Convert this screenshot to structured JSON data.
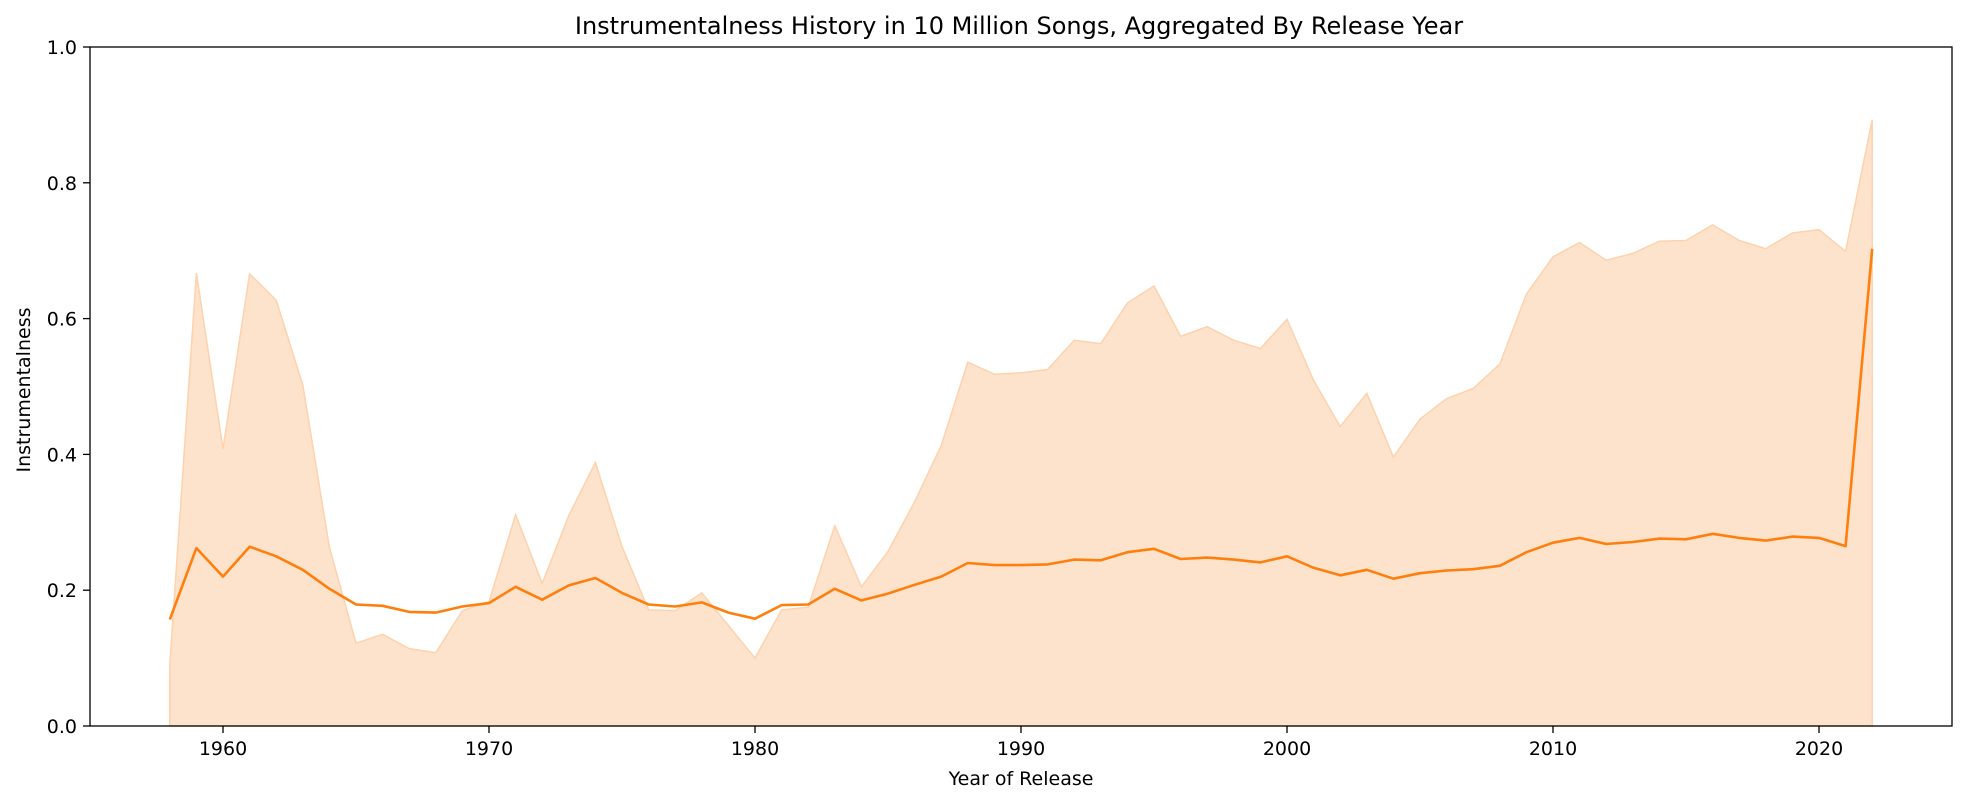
{
  "chart_data": {
    "type": "line",
    "title": "Instrumentalness History in 10 Million Songs, Aggregated By Release Year",
    "xlabel": "Year of Release",
    "ylabel": "Instrumentalness",
    "xlim": [
      1955,
      2025
    ],
    "ylim": [
      0,
      1
    ],
    "xticks": [
      "1960",
      "1970",
      "1980",
      "1990",
      "2000",
      "2010",
      "2020"
    ],
    "yticks": [
      "0.0",
      "0.2",
      "0.4",
      "0.6",
      "0.8",
      "1.0"
    ],
    "grid": false,
    "line_color": "#ff7f0e",
    "band_color": "#fde3cc",
    "band_edge_color": "#fdd2ad",
    "x": [
      1958,
      1959,
      1960,
      1961,
      1962,
      1963,
      1964,
      1965,
      1966,
      1967,
      1968,
      1969,
      1970,
      1971,
      1972,
      1973,
      1974,
      1975,
      1976,
      1977,
      1978,
      1979,
      1980,
      1981,
      1982,
      1983,
      1984,
      1985,
      1986,
      1987,
      1988,
      1989,
      1990,
      1991,
      1992,
      1993,
      1994,
      1995,
      1996,
      1997,
      1998,
      1999,
      2000,
      2001,
      2002,
      2003,
      2004,
      2005,
      2006,
      2007,
      2008,
      2009,
      2010,
      2011,
      2012,
      2013,
      2014,
      2015,
      2016,
      2017,
      2018,
      2019,
      2020,
      2021,
      2022
    ],
    "mean": [
      0.157,
      0.262,
      0.22,
      0.264,
      0.25,
      0.23,
      0.202,
      0.179,
      0.177,
      0.168,
      0.167,
      0.176,
      0.181,
      0.205,
      0.186,
      0.207,
      0.218,
      0.196,
      0.179,
      0.176,
      0.182,
      0.167,
      0.158,
      0.178,
      0.179,
      0.202,
      0.185,
      0.195,
      0.208,
      0.22,
      0.24,
      0.237,
      0.237,
      0.238,
      0.245,
      0.244,
      0.256,
      0.261,
      0.246,
      0.248,
      0.245,
      0.241,
      0.25,
      0.233,
      0.222,
      0.23,
      0.217,
      0.225,
      0.229,
      0.231,
      0.236,
      0.256,
      0.27,
      0.277,
      0.268,
      0.271,
      0.276,
      0.275,
      0.283,
      0.277,
      0.273,
      0.279,
      0.277,
      0.265,
      0.703
    ],
    "upper": [
      0.09,
      0.667,
      0.408,
      0.666,
      0.627,
      0.502,
      0.263,
      0.122,
      0.135,
      0.114,
      0.108,
      0.17,
      0.183,
      0.311,
      0.21,
      0.31,
      0.388,
      0.264,
      0.171,
      0.17,
      0.196,
      0.148,
      0.1,
      0.171,
      0.175,
      0.295,
      0.205,
      0.257,
      0.33,
      0.413,
      0.536,
      0.518,
      0.52,
      0.525,
      0.568,
      0.563,
      0.623,
      0.648,
      0.574,
      0.588,
      0.568,
      0.556,
      0.599,
      0.509,
      0.441,
      0.49,
      0.396,
      0.452,
      0.482,
      0.497,
      0.533,
      0.636,
      0.691,
      0.712,
      0.686,
      0.696,
      0.714,
      0.715,
      0.738,
      0.715,
      0.703,
      0.726,
      0.731,
      0.699,
      0.893
    ],
    "lower": [
      0.0,
      0.0,
      0.0,
      0.0,
      0.0,
      0.0,
      0.0,
      0.0,
      0.0,
      0.0,
      0.0,
      0.0,
      0.0,
      0.0,
      0.0,
      0.0,
      0.0,
      0.0,
      0.0,
      0.0,
      0.0,
      0.0,
      0.0,
      0.0,
      0.0,
      0.0,
      0.0,
      0.0,
      0.0,
      0.0,
      0.0,
      0.0,
      0.0,
      0.0,
      0.0,
      0.0,
      0.0,
      0.0,
      0.0,
      0.0,
      0.0,
      0.0,
      0.0,
      0.0,
      0.0,
      0.0,
      0.0,
      0.0,
      0.0,
      0.0,
      0.0,
      0.0,
      0.0,
      0.0,
      0.0,
      0.0,
      0.0,
      0.0,
      0.0,
      0.0,
      0.0,
      0.0,
      0.0,
      0.0,
      0.0
    ]
  }
}
